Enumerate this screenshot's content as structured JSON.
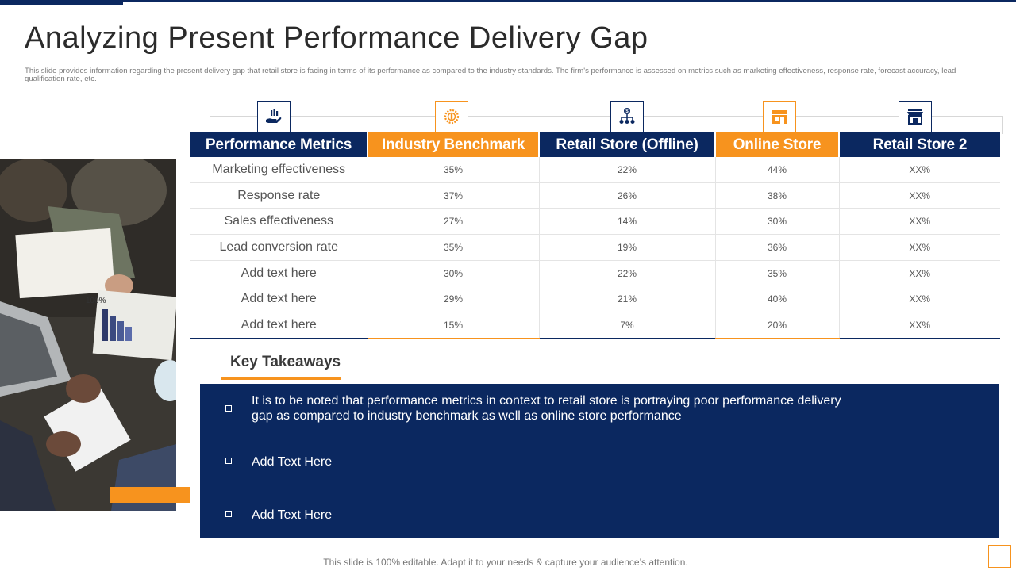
{
  "slide": {
    "title": "Analyzing Present Performance Delivery Gap",
    "subtitle": "This slide provides information regarding the present delivery gap that retail store is facing in terms of its performance as compared to the industry standards. The firm's performance is assessed on metrics such as marketing  effectiveness, response rate, forecast accuracy, lead qualification rate, etc.",
    "footer": "This slide is 100% editable. Adapt it to your needs & capture your audience’s attention."
  },
  "colors": {
    "navy": "#0b2860",
    "orange": "#f7931e"
  },
  "table": {
    "icons": [
      "hand-coin-chart-icon",
      "coin-badge-icon",
      "dollar-network-icon",
      "storefront-icon",
      "shop-awning-icon"
    ],
    "headers": [
      "Performance Metrics",
      "Industry Benchmark",
      "Retail Store (Offline)",
      "Online Store",
      "Retail Store 2"
    ],
    "rows": [
      [
        "Marketing effectiveness",
        "35%",
        "22%",
        "44%",
        "XX%"
      ],
      [
        "Response rate",
        "37%",
        "26%",
        "38%",
        "XX%"
      ],
      [
        "Sales effectiveness",
        "27%",
        "14%",
        "30%",
        "XX%"
      ],
      [
        "Lead conversion rate",
        "35%",
        "19%",
        "36%",
        "XX%"
      ],
      [
        "Add text here",
        "30%",
        "22%",
        "35%",
        "XX%"
      ],
      [
        "Add text here",
        "29%",
        "21%",
        "40%",
        "XX%"
      ],
      [
        "Add text here",
        "15%",
        "7%",
        "20%",
        "XX%"
      ]
    ]
  },
  "takeaways": {
    "title": "Key Takeaways",
    "items": [
      "It is to be noted that performance metrics in context to retail store is portraying poor performance delivery gap as compared to industry  benchmark as well as online store performance",
      "Add Text Here",
      "Add Text Here"
    ]
  }
}
